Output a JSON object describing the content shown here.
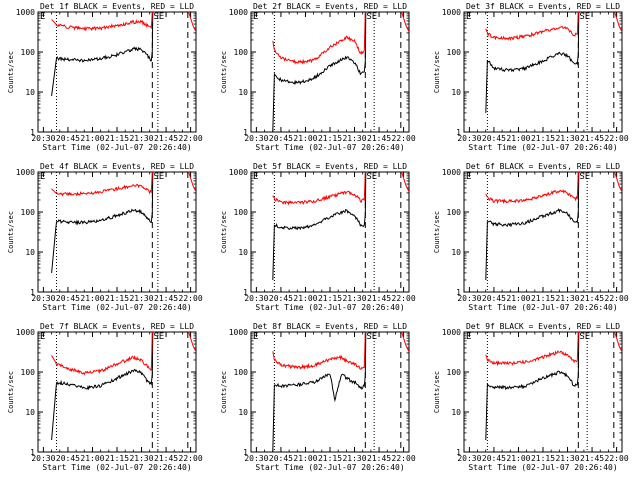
{
  "colors": {
    "events": "#000000",
    "lld": "#ff0000",
    "axis": "#000000",
    "background": "#ffffff"
  },
  "common": {
    "xlabel": "Start Time (02-Jul-07 20:26:40)",
    "ylabel": "Counts/sec",
    "xticks": [
      "20:30",
      "20:45",
      "21:00",
      "21:15",
      "21:30",
      "21:45",
      "22:00"
    ],
    "yticks": [
      "1",
      "10",
      "100",
      "1000"
    ],
    "left_marker": "E",
    "right_marker": "SE"
  },
  "chart_data": [
    {
      "type": "line",
      "title": "Det 1f BLACK = Events, RED = LLD",
      "ylim": [
        1,
        1000
      ],
      "xlim_minutes": [
        -3.3,
        93.3
      ],
      "x_minutes": [
        5,
        8,
        15,
        25,
        35,
        45,
        55,
        60,
        65,
        66
      ],
      "series": [
        {
          "name": "Events",
          "color": "#000000",
          "values": [
            8,
            70,
            65,
            62,
            68,
            85,
            120,
            115,
            70,
            60
          ]
        },
        {
          "name": "LLD",
          "color": "#ff0000",
          "values": [
            650,
            480,
            420,
            380,
            400,
            460,
            560,
            560,
            420,
            400
          ]
        }
      ],
      "vlines_minutes": [
        {
          "x": 8,
          "style": "dotted"
        },
        {
          "x": 66.6,
          "style": "dashed"
        },
        {
          "x": 70,
          "style": "dotted"
        },
        {
          "x": 88.3,
          "style": "dashed"
        }
      ]
    },
    {
      "type": "line",
      "title": "Det 2f BLACK = Events, RED = LLD",
      "ylim": [
        1,
        1000
      ],
      "xlim_minutes": [
        -3.3,
        93.3
      ],
      "x_minutes": [
        10,
        11,
        15,
        25,
        35,
        45,
        55,
        60,
        64,
        66
      ],
      "series": [
        {
          "name": "Events",
          "color": "#000000",
          "values": [
            1,
            28,
            20,
            17,
            22,
            45,
            75,
            55,
            28,
            32
          ]
        },
        {
          "name": "LLD",
          "color": "#ff0000",
          "values": [
            190,
            110,
            70,
            55,
            62,
            130,
            230,
            190,
            90,
            110
          ]
        }
      ],
      "vlines_minutes": [
        {
          "x": 11,
          "style": "dotted"
        },
        {
          "x": 66.6,
          "style": "dashed"
        },
        {
          "x": 72,
          "style": "dotted"
        },
        {
          "x": 88.3,
          "style": "dashed"
        }
      ]
    },
    {
      "type": "line",
      "title": "Det 3f BLACK = Events, RED = LLD",
      "ylim": [
        1,
        1000
      ],
      "xlim_minutes": [
        -3.3,
        93.3
      ],
      "x_minutes": [
        10,
        11,
        15,
        25,
        35,
        45,
        55,
        60,
        64,
        66
      ],
      "series": [
        {
          "name": "Events",
          "color": "#000000",
          "values": [
            3,
            65,
            38,
            35,
            40,
            60,
            95,
            80,
            50,
            50
          ]
        },
        {
          "name": "LLD",
          "color": "#ff0000",
          "values": [
            380,
            290,
            230,
            220,
            250,
            330,
            420,
            390,
            260,
            280
          ]
        }
      ],
      "vlines_minutes": [
        {
          "x": 11,
          "style": "dotted"
        },
        {
          "x": 66.6,
          "style": "dashed"
        },
        {
          "x": 72,
          "style": "dotted"
        },
        {
          "x": 88.3,
          "style": "dashed"
        }
      ]
    },
    {
      "type": "line",
      "title": "Det 4f BLACK = Events, RED = LLD",
      "ylim": [
        1,
        1000
      ],
      "xlim_minutes": [
        -3.3,
        93.3
      ],
      "x_minutes": [
        5,
        8,
        15,
        25,
        35,
        45,
        55,
        60,
        65,
        66
      ],
      "series": [
        {
          "name": "Events",
          "color": "#000000",
          "values": [
            3,
            60,
            55,
            55,
            62,
            82,
            110,
            100,
            60,
            55
          ]
        },
        {
          "name": "LLD",
          "color": "#ff0000",
          "values": [
            380,
            290,
            280,
            290,
            320,
            380,
            460,
            440,
            320,
            320
          ]
        }
      ],
      "vlines_minutes": [
        {
          "x": 8,
          "style": "dotted"
        },
        {
          "x": 66.6,
          "style": "dashed"
        },
        {
          "x": 70,
          "style": "dotted"
        },
        {
          "x": 88.3,
          "style": "dashed"
        }
      ]
    },
    {
      "type": "line",
      "title": "Det 5f BLACK = Events, RED = LLD",
      "ylim": [
        1,
        1000
      ],
      "xlim_minutes": [
        -3.3,
        93.3
      ],
      "x_minutes": [
        10,
        11,
        15,
        25,
        35,
        45,
        55,
        60,
        64,
        66
      ],
      "series": [
        {
          "name": "Events",
          "color": "#000000",
          "values": [
            2,
            48,
            40,
            40,
            45,
            75,
            110,
            80,
            45,
            48
          ]
        },
        {
          "name": "LLD",
          "color": "#ff0000",
          "values": [
            260,
            210,
            175,
            170,
            185,
            240,
            320,
            280,
            190,
            200
          ]
        }
      ],
      "vlines_minutes": [
        {
          "x": 11,
          "style": "dotted"
        },
        {
          "x": 66.6,
          "style": "dashed"
        },
        {
          "x": 72,
          "style": "dotted"
        },
        {
          "x": 88.3,
          "style": "dashed"
        }
      ]
    },
    {
      "type": "line",
      "title": "Det 6f BLACK = Events, RED = LLD",
      "ylim": [
        1,
        1000
      ],
      "xlim_minutes": [
        -3.3,
        93.3
      ],
      "x_minutes": [
        10,
        11,
        15,
        25,
        35,
        45,
        55,
        60,
        64,
        66
      ],
      "series": [
        {
          "name": "Events",
          "color": "#000000",
          "values": [
            2,
            58,
            50,
            48,
            55,
            80,
            110,
            90,
            55,
            55
          ]
        },
        {
          "name": "LLD",
          "color": "#ff0000",
          "values": [
            280,
            230,
            190,
            185,
            200,
            260,
            340,
            300,
            210,
            220
          ]
        }
      ],
      "vlines_minutes": [
        {
          "x": 11,
          "style": "dotted"
        },
        {
          "x": 66.6,
          "style": "dashed"
        },
        {
          "x": 72,
          "style": "dotted"
        },
        {
          "x": 88.3,
          "style": "dashed"
        }
      ]
    },
    {
      "type": "line",
      "title": "Det 7f BLACK = Events, RED = LLD",
      "ylim": [
        1,
        1000
      ],
      "xlim_minutes": [
        -3.3,
        93.3
      ],
      "x_minutes": [
        5,
        8,
        15,
        25,
        35,
        45,
        55,
        60,
        65,
        66
      ],
      "series": [
        {
          "name": "Events",
          "color": "#000000",
          "values": [
            2,
            55,
            50,
            40,
            45,
            70,
            110,
            95,
            50,
            50
          ]
        },
        {
          "name": "LLD",
          "color": "#ff0000",
          "values": [
            260,
            160,
            120,
            95,
            105,
            160,
            230,
            200,
            120,
            110
          ]
        }
      ],
      "vlines_minutes": [
        {
          "x": 8,
          "style": "dotted"
        },
        {
          "x": 66.6,
          "style": "dashed"
        },
        {
          "x": 70,
          "style": "dotted"
        },
        {
          "x": 88.3,
          "style": "dashed"
        }
      ]
    },
    {
      "type": "line",
      "title": "Det 8f BLACK = Events, RED = LLD",
      "ylim": [
        1,
        1000
      ],
      "xlim_minutes": [
        -3.3,
        93.3
      ],
      "x_minutes": [
        10,
        11,
        15,
        25,
        35,
        45,
        48,
        52,
        55,
        60,
        64,
        66
      ],
      "series": [
        {
          "name": "Events",
          "color": "#000000",
          "values": [
            1,
            50,
            45,
            48,
            55,
            90,
            20,
            90,
            70,
            55,
            40,
            45
          ]
        },
        {
          "name": "LLD",
          "color": "#ff0000",
          "values": [
            330,
            200,
            150,
            130,
            145,
            210,
            230,
            230,
            190,
            160,
            120,
            130
          ]
        }
      ],
      "vlines_minutes": [
        {
          "x": 11,
          "style": "dotted"
        },
        {
          "x": 66.6,
          "style": "dashed"
        },
        {
          "x": 72,
          "style": "dotted"
        },
        {
          "x": 88.3,
          "style": "dashed"
        }
      ]
    },
    {
      "type": "line",
      "title": "Det 9f BLACK = Events, RED = LLD",
      "ylim": [
        1,
        1000
      ],
      "xlim_minutes": [
        -3.3,
        93.3
      ],
      "x_minutes": [
        10,
        11,
        15,
        25,
        35,
        45,
        55,
        60,
        64,
        66
      ],
      "series": [
        {
          "name": "Events",
          "color": "#000000",
          "values": [
            2,
            50,
            42,
            40,
            45,
            70,
            100,
            80,
            45,
            48
          ]
        },
        {
          "name": "LLD",
          "color": "#ff0000",
          "values": [
            270,
            210,
            170,
            165,
            180,
            240,
            320,
            270,
            180,
            190
          ]
        }
      ],
      "vlines_minutes": [
        {
          "x": 11,
          "style": "dotted"
        },
        {
          "x": 66.6,
          "style": "dashed"
        },
        {
          "x": 72,
          "style": "dotted"
        },
        {
          "x": 88.3,
          "style": "dashed"
        }
      ]
    }
  ]
}
